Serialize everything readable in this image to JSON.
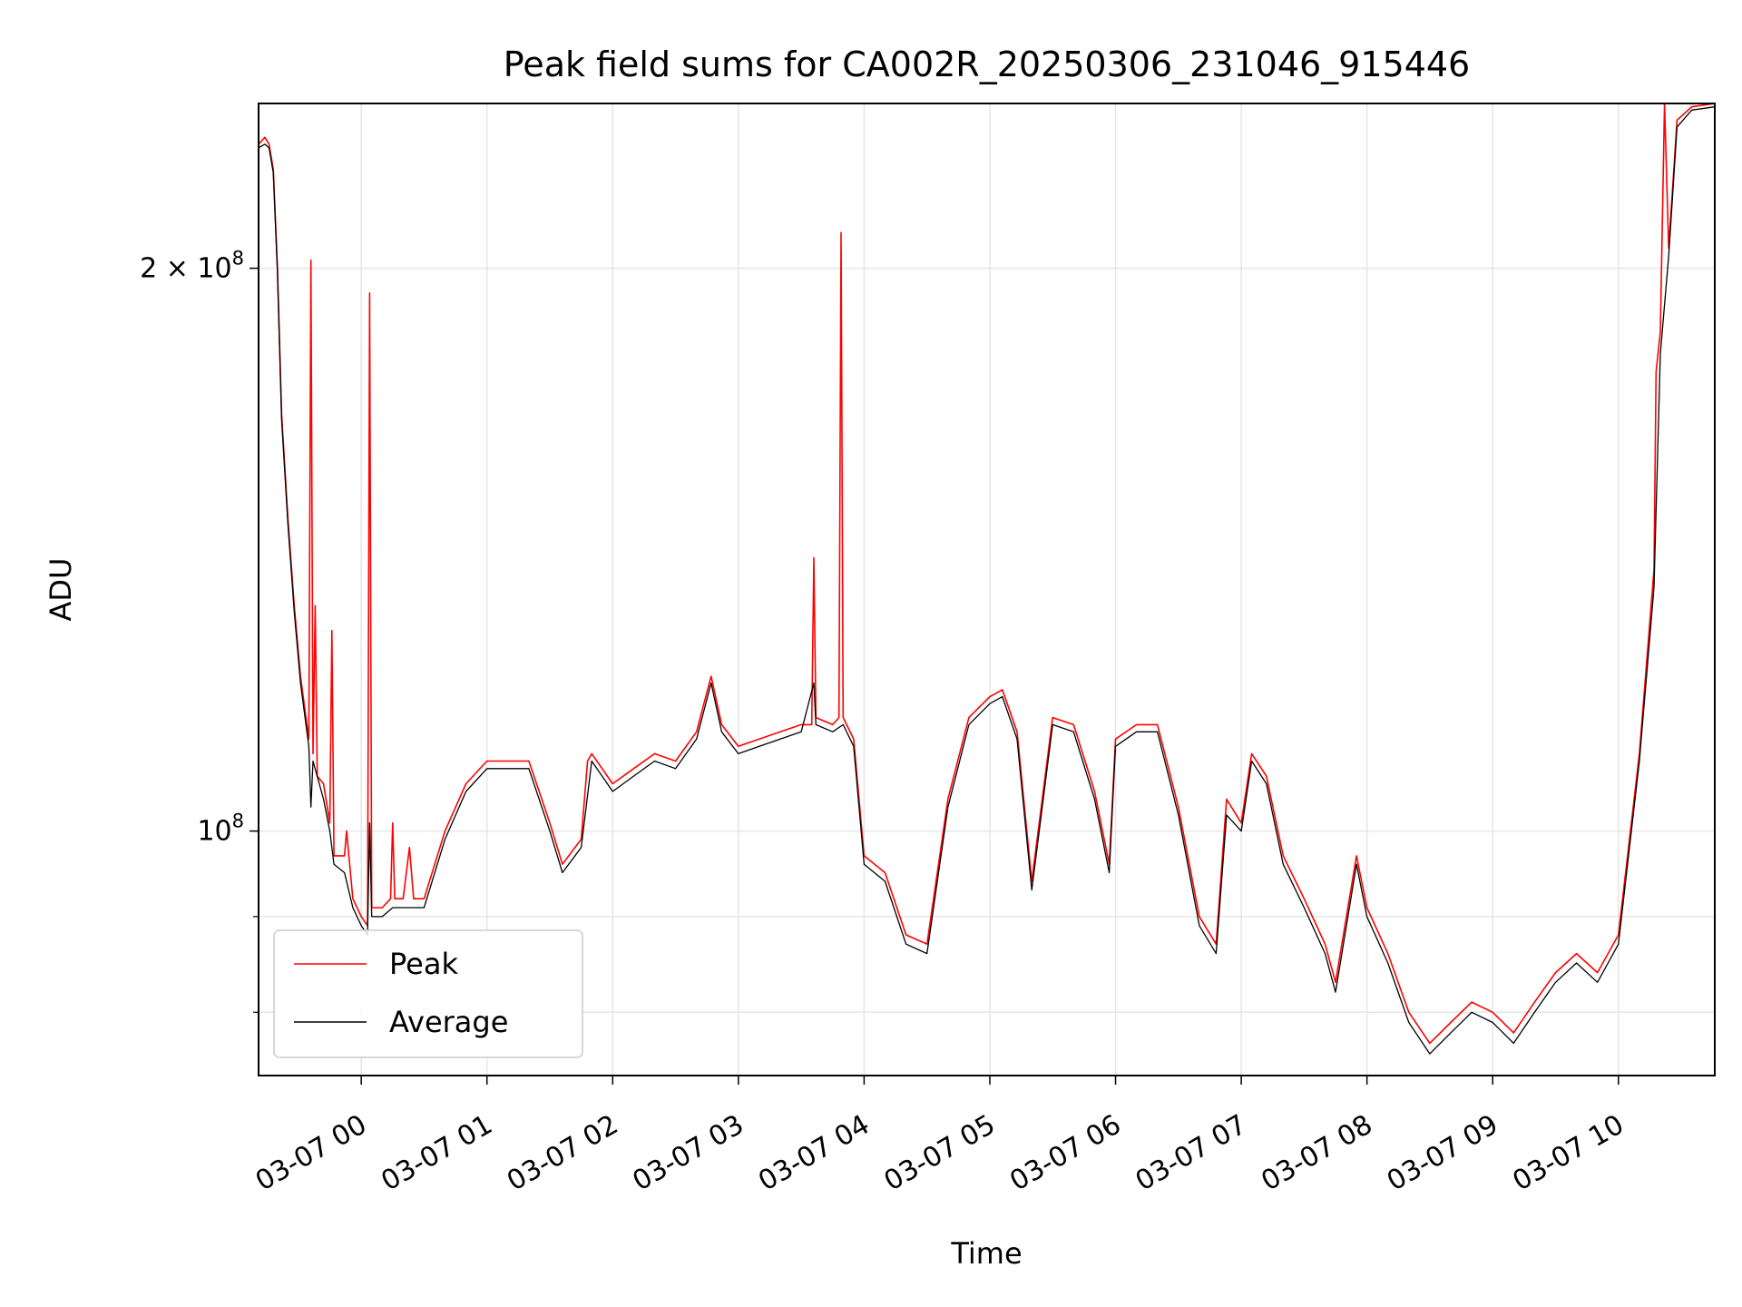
{
  "chart_data": {
    "type": "line",
    "title": "Peak field sums for CA002R_20250306_231046_915446",
    "xlabel": "Time",
    "ylabel": "ADU",
    "y_scale": "log",
    "xlim": [
      "2025-03-06 23:11",
      "2025-03-07 10:46"
    ],
    "ylim": [
      74000000,
      245000000
    ],
    "grid": true,
    "legend_position": "lower-left",
    "x_tick_labels": [
      "03-07 00",
      "03-07 01",
      "03-07 02",
      "03-07 03",
      "03-07 04",
      "03-07 05",
      "03-07 06",
      "03-07 07",
      "03-07 08",
      "03-07 09",
      "03-07 10"
    ],
    "y_ticks": [
      {
        "value": 100000000,
        "label_base": "10",
        "label_exp": "8"
      },
      {
        "value": 200000000,
        "label_base": "2 × 10",
        "label_exp": "8"
      }
    ],
    "y_minor_ticks": [
      80000000,
      90000000
    ],
    "series": [
      {
        "name": "Peak",
        "color": "#ff0000",
        "points": [
          [
            "2025-03-06 23:11",
            233000000
          ],
          [
            "2025-03-06 23:14",
            235000000
          ],
          [
            "2025-03-06 23:16",
            233000000
          ],
          [
            "2025-03-06 23:18",
            226000000
          ],
          [
            "2025-03-06 23:20",
            200000000
          ],
          [
            "2025-03-06 23:22",
            167000000
          ],
          [
            "2025-03-06 23:25",
            147000000
          ],
          [
            "2025-03-06 23:28",
            132000000
          ],
          [
            "2025-03-06 23:31",
            121000000
          ],
          [
            "2025-03-06 23:35",
            112000000
          ],
          [
            "2025-03-06 23:36",
            202000000
          ],
          [
            "2025-03-06 23:37",
            110000000
          ],
          [
            "2025-03-06 23:38",
            132000000
          ],
          [
            "2025-03-06 23:39",
            107000000
          ],
          [
            "2025-03-06 23:42",
            106000000
          ],
          [
            "2025-03-06 23:45",
            101000000
          ],
          [
            "2025-03-06 23:46",
            128000000
          ],
          [
            "2025-03-06 23:47",
            97000000
          ],
          [
            "2025-03-06 23:52",
            97000000
          ],
          [
            "2025-03-06 23:53",
            100000000
          ],
          [
            "2025-03-06 23:56",
            92000000
          ],
          [
            "2025-03-07 00:00",
            90000000
          ],
          [
            "2025-03-07 00:03",
            89000000
          ],
          [
            "2025-03-07 00:04",
            194000000
          ],
          [
            "2025-03-07 00:05",
            91000000
          ],
          [
            "2025-03-07 00:10",
            91000000
          ],
          [
            "2025-03-07 00:14",
            92000000
          ],
          [
            "2025-03-07 00:15",
            101000000
          ],
          [
            "2025-03-07 00:16",
            92000000
          ],
          [
            "2025-03-07 00:20",
            92000000
          ],
          [
            "2025-03-07 00:23",
            98000000
          ],
          [
            "2025-03-07 00:25",
            92000000
          ],
          [
            "2025-03-07 00:30",
            92000000
          ],
          [
            "2025-03-07 00:40",
            100000000
          ],
          [
            "2025-03-07 00:50",
            106000000
          ],
          [
            "2025-03-07 01:00",
            109000000
          ],
          [
            "2025-03-07 01:10",
            109000000
          ],
          [
            "2025-03-07 01:20",
            109000000
          ],
          [
            "2025-03-07 01:30",
            101000000
          ],
          [
            "2025-03-07 01:36",
            96000000
          ],
          [
            "2025-03-07 01:45",
            99000000
          ],
          [
            "2025-03-07 01:48",
            109000000
          ],
          [
            "2025-03-07 01:50",
            110000000
          ],
          [
            "2025-03-07 02:00",
            106000000
          ],
          [
            "2025-03-07 02:10",
            108000000
          ],
          [
            "2025-03-07 02:20",
            110000000
          ],
          [
            "2025-03-07 02:30",
            109000000
          ],
          [
            "2025-03-07 02:40",
            113000000
          ],
          [
            "2025-03-07 02:47",
            121000000
          ],
          [
            "2025-03-07 02:52",
            114000000
          ],
          [
            "2025-03-07 03:00",
            111000000
          ],
          [
            "2025-03-07 03:10",
            112000000
          ],
          [
            "2025-03-07 03:20",
            113000000
          ],
          [
            "2025-03-07 03:30",
            114000000
          ],
          [
            "2025-03-07 03:35",
            114000000
          ],
          [
            "2025-03-07 03:36",
            140000000
          ],
          [
            "2025-03-07 03:37",
            115000000
          ],
          [
            "2025-03-07 03:45",
            114000000
          ],
          [
            "2025-03-07 03:48",
            115000000
          ],
          [
            "2025-03-07 03:49",
            209000000
          ],
          [
            "2025-03-07 03:50",
            115000000
          ],
          [
            "2025-03-07 03:55",
            112000000
          ],
          [
            "2025-03-07 04:00",
            97000000
          ],
          [
            "2025-03-07 04:10",
            95000000
          ],
          [
            "2025-03-07 04:20",
            88000000
          ],
          [
            "2025-03-07 04:30",
            87000000
          ],
          [
            "2025-03-07 04:40",
            104000000
          ],
          [
            "2025-03-07 04:50",
            115000000
          ],
          [
            "2025-03-07 05:00",
            118000000
          ],
          [
            "2025-03-07 05:06",
            119000000
          ],
          [
            "2025-03-07 05:13",
            113000000
          ],
          [
            "2025-03-07 05:20",
            94000000
          ],
          [
            "2025-03-07 05:30",
            115000000
          ],
          [
            "2025-03-07 05:40",
            114000000
          ],
          [
            "2025-03-07 05:50",
            105000000
          ],
          [
            "2025-03-07 05:57",
            96000000
          ],
          [
            "2025-03-07 06:00",
            112000000
          ],
          [
            "2025-03-07 06:10",
            114000000
          ],
          [
            "2025-03-07 06:20",
            114000000
          ],
          [
            "2025-03-07 06:30",
            103000000
          ],
          [
            "2025-03-07 06:40",
            90000000
          ],
          [
            "2025-03-07 06:48",
            87000000
          ],
          [
            "2025-03-07 06:53",
            104000000
          ],
          [
            "2025-03-07 07:00",
            101000000
          ],
          [
            "2025-03-07 07:05",
            110000000
          ],
          [
            "2025-03-07 07:12",
            107000000
          ],
          [
            "2025-03-07 07:20",
            97000000
          ],
          [
            "2025-03-07 07:30",
            92000000
          ],
          [
            "2025-03-07 07:40",
            87000000
          ],
          [
            "2025-03-07 07:45",
            83000000
          ],
          [
            "2025-03-07 07:55",
            97000000
          ],
          [
            "2025-03-07 08:00",
            91000000
          ],
          [
            "2025-03-07 08:10",
            86000000
          ],
          [
            "2025-03-07 08:20",
            80000000
          ],
          [
            "2025-03-07 08:30",
            77000000
          ],
          [
            "2025-03-07 08:40",
            79000000
          ],
          [
            "2025-03-07 08:50",
            81000000
          ],
          [
            "2025-03-07 09:00",
            80000000
          ],
          [
            "2025-03-07 09:10",
            78000000
          ],
          [
            "2025-03-07 09:20",
            81000000
          ],
          [
            "2025-03-07 09:30",
            84000000
          ],
          [
            "2025-03-07 09:40",
            86000000
          ],
          [
            "2025-03-07 09:50",
            84000000
          ],
          [
            "2025-03-07 10:00",
            88000000
          ],
          [
            "2025-03-07 10:10",
            110000000
          ],
          [
            "2025-03-07 10:17",
            138000000
          ],
          [
            "2025-03-07 10:18",
            176000000
          ],
          [
            "2025-03-07 10:20",
            185000000
          ],
          [
            "2025-03-07 10:22",
            245000000
          ],
          [
            "2025-03-07 10:24",
            205000000
          ],
          [
            "2025-03-07 10:28",
            240000000
          ],
          [
            "2025-03-07 10:35",
            244000000
          ],
          [
            "2025-03-07 10:46",
            245000000
          ]
        ]
      },
      {
        "name": "Average",
        "color": "#000000",
        "points": [
          [
            "2025-03-06 23:11",
            232000000
          ],
          [
            "2025-03-06 23:14",
            233000000
          ],
          [
            "2025-03-06 23:16",
            232000000
          ],
          [
            "2025-03-06 23:18",
            225000000
          ],
          [
            "2025-03-06 23:20",
            199000000
          ],
          [
            "2025-03-06 23:22",
            166000000
          ],
          [
            "2025-03-06 23:25",
            146000000
          ],
          [
            "2025-03-06 23:28",
            131000000
          ],
          [
            "2025-03-06 23:31",
            120000000
          ],
          [
            "2025-03-06 23:35",
            111000000
          ],
          [
            "2025-03-06 23:36",
            103000000
          ],
          [
            "2025-03-06 23:37",
            109000000
          ],
          [
            "2025-03-06 23:42",
            104000000
          ],
          [
            "2025-03-06 23:45",
            100000000
          ],
          [
            "2025-03-06 23:47",
            96000000
          ],
          [
            "2025-03-06 23:52",
            95000000
          ],
          [
            "2025-03-06 23:56",
            91000000
          ],
          [
            "2025-03-07 00:00",
            89000000
          ],
          [
            "2025-03-07 00:03",
            88000000
          ],
          [
            "2025-03-07 00:04",
            101000000
          ],
          [
            "2025-03-07 00:05",
            90000000
          ],
          [
            "2025-03-07 00:10",
            90000000
          ],
          [
            "2025-03-07 00:15",
            91000000
          ],
          [
            "2025-03-07 00:20",
            91000000
          ],
          [
            "2025-03-07 00:25",
            91000000
          ],
          [
            "2025-03-07 00:30",
            91000000
          ],
          [
            "2025-03-07 00:40",
            99000000
          ],
          [
            "2025-03-07 00:50",
            105000000
          ],
          [
            "2025-03-07 01:00",
            108000000
          ],
          [
            "2025-03-07 01:10",
            108000000
          ],
          [
            "2025-03-07 01:20",
            108000000
          ],
          [
            "2025-03-07 01:30",
            100000000
          ],
          [
            "2025-03-07 01:36",
            95000000
          ],
          [
            "2025-03-07 01:45",
            98000000
          ],
          [
            "2025-03-07 01:50",
            109000000
          ],
          [
            "2025-03-07 02:00",
            105000000
          ],
          [
            "2025-03-07 02:10",
            107000000
          ],
          [
            "2025-03-07 02:20",
            109000000
          ],
          [
            "2025-03-07 02:30",
            108000000
          ],
          [
            "2025-03-07 02:40",
            112000000
          ],
          [
            "2025-03-07 02:47",
            120000000
          ],
          [
            "2025-03-07 02:52",
            113000000
          ],
          [
            "2025-03-07 03:00",
            110000000
          ],
          [
            "2025-03-07 03:10",
            111000000
          ],
          [
            "2025-03-07 03:20",
            112000000
          ],
          [
            "2025-03-07 03:30",
            113000000
          ],
          [
            "2025-03-07 03:36",
            120000000
          ],
          [
            "2025-03-07 03:37",
            114000000
          ],
          [
            "2025-03-07 03:45",
            113000000
          ],
          [
            "2025-03-07 03:50",
            114000000
          ],
          [
            "2025-03-07 03:55",
            111000000
          ],
          [
            "2025-03-07 04:00",
            96000000
          ],
          [
            "2025-03-07 04:10",
            94000000
          ],
          [
            "2025-03-07 04:20",
            87000000
          ],
          [
            "2025-03-07 04:30",
            86000000
          ],
          [
            "2025-03-07 04:40",
            103000000
          ],
          [
            "2025-03-07 04:50",
            114000000
          ],
          [
            "2025-03-07 05:00",
            117000000
          ],
          [
            "2025-03-07 05:06",
            118000000
          ],
          [
            "2025-03-07 05:13",
            112000000
          ],
          [
            "2025-03-07 05:20",
            93000000
          ],
          [
            "2025-03-07 05:30",
            114000000
          ],
          [
            "2025-03-07 05:40",
            113000000
          ],
          [
            "2025-03-07 05:50",
            104000000
          ],
          [
            "2025-03-07 05:57",
            95000000
          ],
          [
            "2025-03-07 06:00",
            111000000
          ],
          [
            "2025-03-07 06:10",
            113000000
          ],
          [
            "2025-03-07 06:20",
            113000000
          ],
          [
            "2025-03-07 06:30",
            102000000
          ],
          [
            "2025-03-07 06:40",
            89000000
          ],
          [
            "2025-03-07 06:48",
            86000000
          ],
          [
            "2025-03-07 06:53",
            102000000
          ],
          [
            "2025-03-07 07:00",
            100000000
          ],
          [
            "2025-03-07 07:05",
            109000000
          ],
          [
            "2025-03-07 07:12",
            106000000
          ],
          [
            "2025-03-07 07:20",
            96000000
          ],
          [
            "2025-03-07 07:30",
            91000000
          ],
          [
            "2025-03-07 07:40",
            86000000
          ],
          [
            "2025-03-07 07:45",
            82000000
          ],
          [
            "2025-03-07 07:55",
            96000000
          ],
          [
            "2025-03-07 08:00",
            90000000
          ],
          [
            "2025-03-07 08:10",
            85000000
          ],
          [
            "2025-03-07 08:20",
            79000000
          ],
          [
            "2025-03-07 08:30",
            76000000
          ],
          [
            "2025-03-07 08:40",
            78000000
          ],
          [
            "2025-03-07 08:50",
            80000000
          ],
          [
            "2025-03-07 09:00",
            79000000
          ],
          [
            "2025-03-07 09:10",
            77000000
          ],
          [
            "2025-03-07 09:20",
            80000000
          ],
          [
            "2025-03-07 09:30",
            83000000
          ],
          [
            "2025-03-07 09:40",
            85000000
          ],
          [
            "2025-03-07 09:50",
            83000000
          ],
          [
            "2025-03-07 10:00",
            87000000
          ],
          [
            "2025-03-07 10:10",
            109000000
          ],
          [
            "2025-03-07 10:17",
            135000000
          ],
          [
            "2025-03-07 10:20",
            180000000
          ],
          [
            "2025-03-07 10:24",
            203000000
          ],
          [
            "2025-03-07 10:28",
            238000000
          ],
          [
            "2025-03-07 10:35",
            243000000
          ],
          [
            "2025-03-07 10:46",
            244000000
          ]
        ]
      }
    ]
  }
}
